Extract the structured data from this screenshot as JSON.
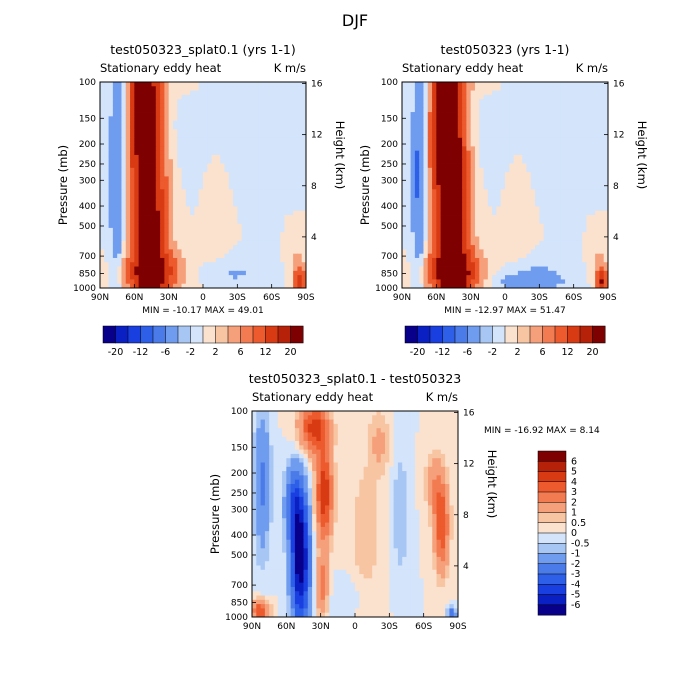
{
  "chart_data": {
    "type": "heatmap",
    "title": "DJF",
    "colors": {
      "-6": "#08008a",
      "-5": "#0b20c2",
      "-4": "#1a3fe0",
      "-3": "#2d5fe8",
      "-2": "#4a7be8",
      "-1": "#6f9cee",
      "-0.5": "#a8c6f4",
      "0": "#d3e4fb",
      "0.5": "#fbe2cf",
      "1": "#f8c5a3",
      "2": "#f5a07a",
      "3": "#f27b52",
      "4": "#ec5a2d",
      "5": "#d83a13",
      "6": "#b52209",
      "7": "#7f0000"
    },
    "panels": [
      {
        "title": "test050323_splat0.1 (yrs 1-1)",
        "left_label": "Stationary eddy heat",
        "right_label": "K m/s",
        "ylabel": "Pressure (mb)",
        "ylabel_right": "Height (km)",
        "pressure_ticks": [
          "100",
          "150",
          "200",
          "250",
          "300",
          "400",
          "500",
          "700",
          "850",
          "1000"
        ],
        "height_ticks": [
          "16",
          "12",
          "8",
          "4"
        ],
        "lat_ticks": [
          "90N",
          "60N",
          "30N",
          "0",
          "30S",
          "60S",
          "90S"
        ],
        "stats": "MIN = -10.17   MAX =   49.01",
        "colorbar_labels": [
          "-20",
          "-12",
          "-6",
          "-2",
          "2",
          "6",
          "12",
          "20"
        ],
        "field": "ctrl",
        "min": -10.17,
        "max": 49.01
      },
      {
        "title": "test050323 (yrs 1-1)",
        "left_label": "Stationary eddy heat",
        "right_label": "K m/s",
        "ylabel": "Pressure (mb)",
        "ylabel_right": "Height (km)",
        "pressure_ticks": [
          "100",
          "150",
          "200",
          "250",
          "300",
          "400",
          "500",
          "700",
          "850",
          "1000"
        ],
        "height_ticks": [
          "16",
          "12",
          "8",
          "4"
        ],
        "lat_ticks": [
          "90N",
          "60N",
          "30N",
          "0",
          "30S",
          "60S",
          "90S"
        ],
        "stats": "MIN = -12.97   MAX =   51.47",
        "colorbar_labels": [
          "-20",
          "-12",
          "-6",
          "-2",
          "2",
          "6",
          "12",
          "20"
        ],
        "field": "ctrl2",
        "min": -12.97,
        "max": 51.47
      },
      {
        "title": "test050323_splat0.1 - test050323",
        "left_label": "Stationary eddy heat",
        "right_label": "K m/s",
        "ylabel": "Pressure (mb)",
        "ylabel_right": "Height (km)",
        "pressure_ticks": [
          "100",
          "150",
          "200",
          "250",
          "300",
          "400",
          "500",
          "700",
          "850",
          "1000"
        ],
        "height_ticks": [
          "16",
          "12",
          "8",
          "4"
        ],
        "lat_ticks": [
          "90N",
          "60N",
          "30N",
          "0",
          "30S",
          "60S",
          "90S"
        ],
        "stats": "MIN = -16.92   MAX =    8.14",
        "colorbar_labels": [
          "6",
          "5",
          "4",
          "3",
          "2",
          "1",
          "0.5",
          "0",
          "-0.5",
          "-1",
          "-2",
          "-3",
          "-4",
          "-5",
          "-6"
        ],
        "field": "diff",
        "min": -16.92,
        "max": 8.14
      }
    ]
  }
}
